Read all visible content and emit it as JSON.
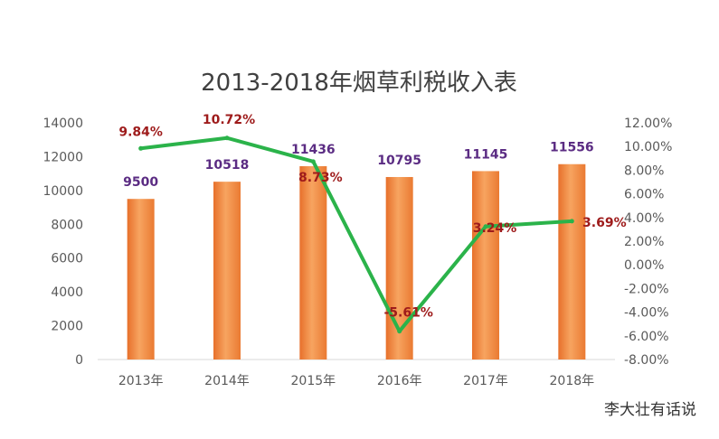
{
  "chart_data": {
    "type": "bar",
    "title": "2013-2018年烟草利税收入表",
    "categories": [
      "2013年",
      "2014年",
      "2015年",
      "2016年",
      "2017年",
      "2018年"
    ],
    "series": [
      {
        "type": "bar",
        "axis": "left",
        "color": "#f28a36",
        "values": [
          9500,
          10518,
          11436,
          10795,
          11145,
          11556
        ],
        "data_labels": [
          "9500",
          "10518",
          "11436",
          "10795",
          "11145",
          "11556"
        ]
      },
      {
        "type": "line",
        "axis": "right",
        "color": "#2bb34a",
        "values": [
          9.84,
          10.72,
          8.73,
          -5.61,
          3.24,
          3.69
        ],
        "data_labels": [
          "9.84%",
          "10.72%",
          "8.73%",
          "-5.61%",
          "3.24%",
          "3.69%"
        ]
      }
    ],
    "y_left": {
      "range": [
        0,
        14000
      ],
      "ticks": [
        0,
        2000,
        4000,
        6000,
        8000,
        10000,
        12000,
        14000
      ],
      "tick_labels": [
        "0",
        "2000",
        "4000",
        "6000",
        "8000",
        "10000",
        "12000",
        "14000"
      ]
    },
    "y_right": {
      "range": [
        -8,
        12
      ],
      "ticks": [
        -8,
        -6,
        -4,
        -2,
        0,
        2,
        4,
        6,
        8,
        10,
        12
      ],
      "tick_labels": [
        "-8.00%",
        "-6.00%",
        "-4.00%",
        "-2.00%",
        "0.00%",
        "2.00%",
        "4.00%",
        "6.00%",
        "8.00%",
        "10.00%",
        "12.00%"
      ]
    },
    "grid": false
  },
  "footer": {
    "text": "李大壮有话说"
  }
}
